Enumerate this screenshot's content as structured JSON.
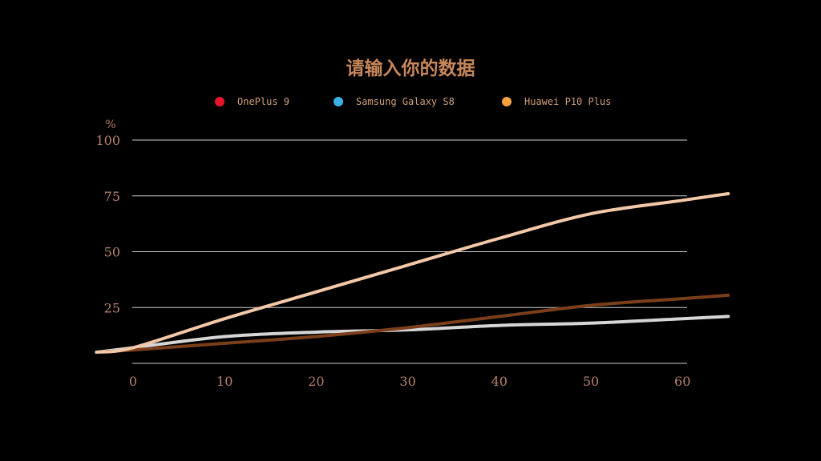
{
  "chart_data": {
    "type": "line",
    "title": "请输入你的数据",
    "ylabel": "%",
    "xlabel": "",
    "xlim": [
      0,
      65
    ],
    "ylim": [
      0,
      100
    ],
    "x_ticks": [
      0,
      10,
      20,
      30,
      40,
      50,
      60
    ],
    "y_ticks": [
      25,
      50,
      75,
      100
    ],
    "grid": true,
    "legend_position": "top",
    "x": [
      -4,
      0,
      10,
      20,
      30,
      40,
      50,
      60,
      65
    ],
    "series": [
      {
        "name": "OnePlus 9",
        "legend_color": "#e8152b",
        "line_color": "#7a3f1a",
        "values": [
          5,
          6,
          9,
          12,
          16,
          21,
          26,
          29,
          30.5
        ]
      },
      {
        "name": "Samsung Galaxy S8",
        "legend_color": "#3cb0e6",
        "line_color": "#d6d6d6",
        "values": [
          5,
          7,
          12,
          14,
          15,
          17,
          18,
          20,
          21
        ]
      },
      {
        "name": "Huawei P10 Plus",
        "legend_color": "#f5a040",
        "line_color": "#f3c8a8",
        "values": [
          5,
          7,
          20,
          32,
          44,
          56,
          67,
          73,
          76
        ]
      }
    ]
  }
}
